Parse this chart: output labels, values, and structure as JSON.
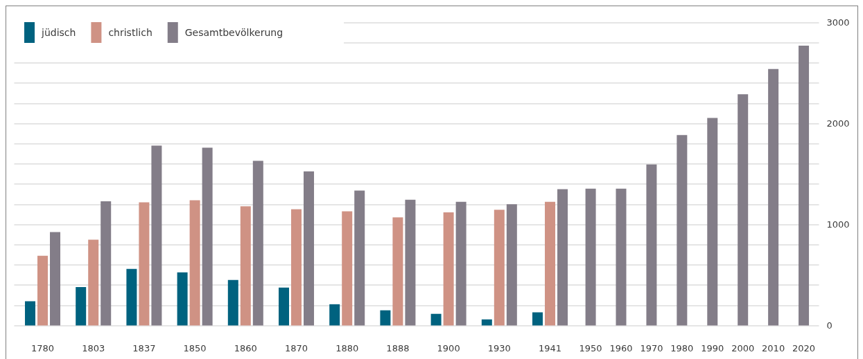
{
  "chart_data": {
    "type": "bar",
    "categories": [
      "1780",
      "1803",
      "1837",
      "1850",
      "1860",
      "1870",
      "1880",
      "1888",
      "1900",
      "1930",
      "1941",
      "1950",
      "1960",
      "1970",
      "1980",
      "1990",
      "2000",
      "2010",
      "2020"
    ],
    "series": [
      {
        "name": "jüdisch",
        "color": "#00627f",
        "values": [
          240,
          380,
          560,
          525,
          450,
          375,
          210,
          150,
          115,
          60,
          130,
          null,
          null,
          null,
          null,
          null,
          null,
          null,
          null
        ]
      },
      {
        "name": "christlich",
        "color": "#cf9284",
        "values": [
          690,
          850,
          1220,
          1240,
          1180,
          1150,
          1130,
          1070,
          1120,
          1145,
          1225,
          null,
          null,
          null,
          null,
          null,
          null,
          null,
          null
        ]
      },
      {
        "name": "Gesamtbevölkerung",
        "color": "#837d88",
        "values": [
          925,
          1230,
          1780,
          1760,
          1630,
          1525,
          1335,
          1245,
          1225,
          1200,
          1350,
          1355,
          1355,
          1595,
          1885,
          2055,
          2290,
          2540,
          2770
        ]
      }
    ],
    "ylim": [
      0,
      3000
    ],
    "yticks": [
      0,
      {
        "value": 200,
        "label": null
      },
      {
        "value": 400,
        "label": null
      },
      {
        "value": 600,
        "label": null
      },
      {
        "value": 800,
        "label": null
      },
      1000,
      {
        "value": 1200,
        "label": null
      },
      {
        "value": 1400,
        "label": null
      },
      {
        "value": 1600,
        "label": null
      },
      {
        "value": 1800,
        "label": null
      },
      2000,
      {
        "value": 2200,
        "label": null
      },
      {
        "value": 2400,
        "label": null
      },
      {
        "value": 2600,
        "label": null
      },
      {
        "value": 2800,
        "label": null
      },
      3000
    ],
    "grid": "y",
    "legend": "top left"
  }
}
